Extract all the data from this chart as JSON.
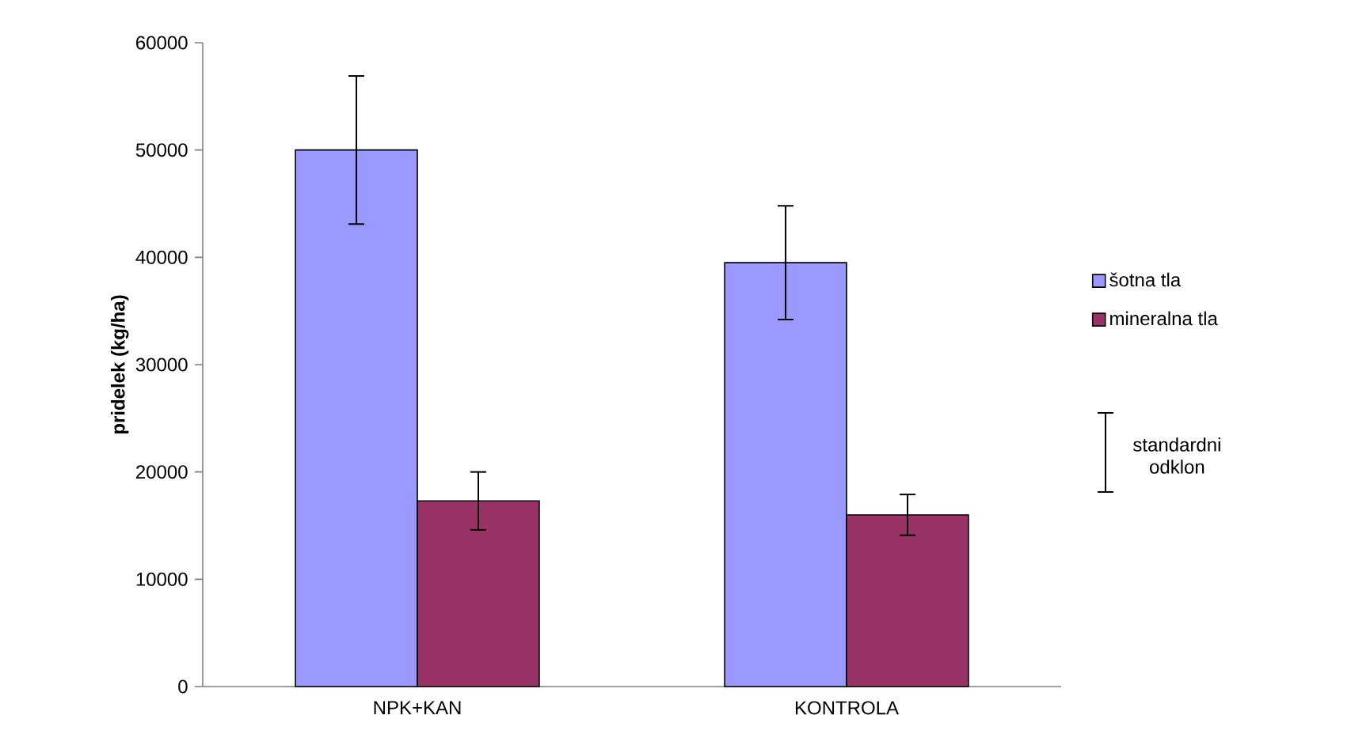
{
  "chart_data": {
    "type": "bar",
    "ylabel": "**pridelek (kg/ha)**",
    "categories": [
      "NPK+KAN",
      "KONTROLA"
    ],
    "series": [
      {
        "name": "šotna tla",
        "color": "#9999ff",
        "values": [
          50000,
          39500
        ],
        "errors": [
          6900,
          5300
        ]
      },
      {
        "name": "mineralna tla",
        "color": "#993366",
        "values": [
          17300,
          16000
        ],
        "errors": [
          2700,
          1900
        ]
      }
    ],
    "ylim": [
      0,
      60000
    ],
    "yticks": [
      0,
      10000,
      20000,
      30000,
      40000,
      50000,
      60000
    ],
    "grid": false,
    "legend": "right",
    "annotations": [
      "standardni odklon"
    ]
  }
}
